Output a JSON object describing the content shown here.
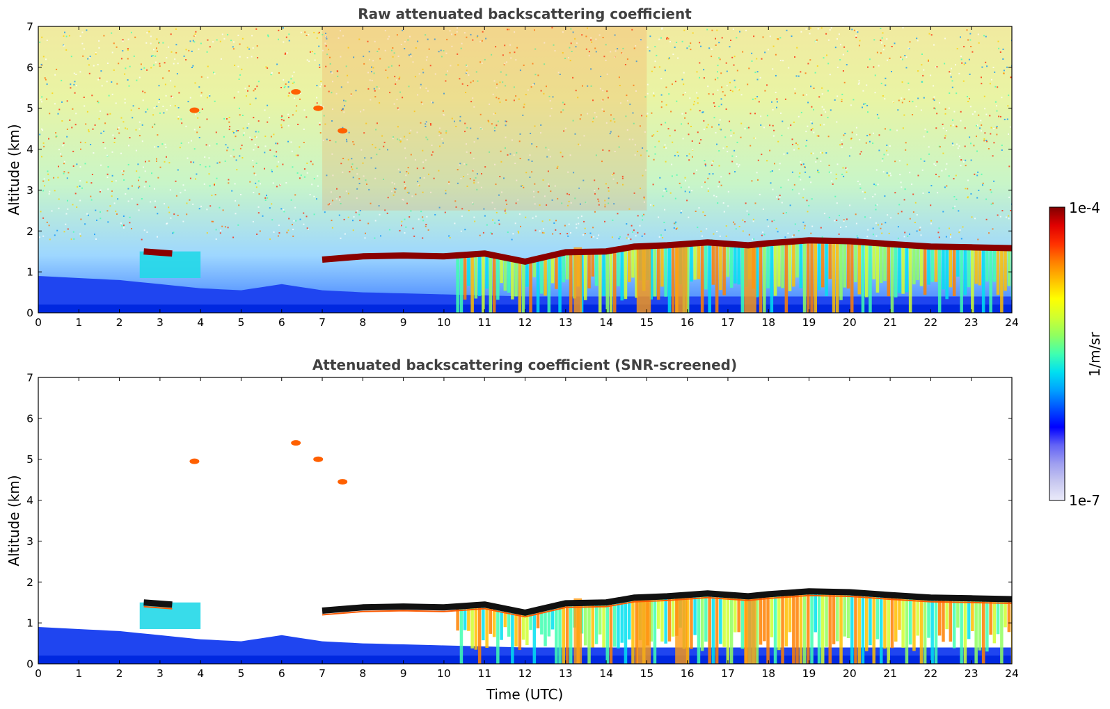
{
  "chart_data": [
    {
      "type": "heatmap",
      "title": "Raw attenuated backscattering coefficient",
      "xlabel": "",
      "ylabel": "Altitude (km)",
      "xlim": [
        0,
        24
      ],
      "ylim": [
        0,
        7
      ],
      "xticks": [
        "0",
        "1",
        "2",
        "3",
        "4",
        "5",
        "6",
        "7",
        "8",
        "9",
        "10",
        "11",
        "12",
        "13",
        "14",
        "15",
        "16",
        "17",
        "18",
        "19",
        "20",
        "21",
        "22",
        "23",
        "24"
      ],
      "yticks": [
        "0",
        "1",
        "2",
        "3",
        "4",
        "5",
        "6",
        "7"
      ],
      "cloud_base_km": [
        {
          "t": 2.6,
          "z": 1.5
        },
        {
          "t": 3.3,
          "z": 1.45
        },
        {
          "t": 7.0,
          "z": 1.3
        },
        {
          "t": 8.0,
          "z": 1.38
        },
        {
          "t": 9.0,
          "z": 1.4
        },
        {
          "t": 10.0,
          "z": 1.38
        },
        {
          "t": 11.0,
          "z": 1.45
        },
        {
          "t": 12.0,
          "z": 1.25
        },
        {
          "t": 13.0,
          "z": 1.48
        },
        {
          "t": 14.0,
          "z": 1.5
        },
        {
          "t": 14.7,
          "z": 1.62
        },
        {
          "t": 15.5,
          "z": 1.65
        },
        {
          "t": 16.5,
          "z": 1.72
        },
        {
          "t": 17.5,
          "z": 1.65
        },
        {
          "t": 18.0,
          "z": 1.7
        },
        {
          "t": 19.0,
          "z": 1.77
        },
        {
          "t": 20.0,
          "z": 1.75
        },
        {
          "t": 21.0,
          "z": 1.68
        },
        {
          "t": 22.0,
          "z": 1.62
        },
        {
          "t": 23.0,
          "z": 1.6
        },
        {
          "t": 24.0,
          "z": 1.58
        }
      ],
      "aerosol_layer": [
        {
          "t": 0,
          "top_km": 0.9
        },
        {
          "t": 2,
          "top_km": 0.8
        },
        {
          "t": 3,
          "top_km": 0.7
        },
        {
          "t": 4,
          "top_km": 0.6
        },
        {
          "t": 5,
          "top_km": 0.55
        },
        {
          "t": 6,
          "top_km": 0.7
        },
        {
          "t": 7,
          "top_km": 0.55
        },
        {
          "t": 8,
          "top_km": 0.5
        },
        {
          "t": 10,
          "top_km": 0.45
        },
        {
          "t": 12,
          "top_km": 0.4
        },
        {
          "t": 24,
          "top_km": 0.4
        }
      ],
      "cirrus_features": [
        {
          "t": 3.85,
          "z": 4.95
        },
        {
          "t": 6.35,
          "z": 5.4
        },
        {
          "t": 6.9,
          "z": 5.0
        },
        {
          "t": 7.5,
          "z": 4.45
        }
      ],
      "grid": false
    },
    {
      "type": "heatmap",
      "title": "Attenuated backscattering coefficient (SNR-screened)",
      "xlabel": "Time (UTC)",
      "ylabel": "Altitude (km)",
      "xlim": [
        0,
        24
      ],
      "ylim": [
        0,
        7
      ],
      "xticks": [
        "0",
        "1",
        "2",
        "3",
        "4",
        "5",
        "6",
        "7",
        "8",
        "9",
        "10",
        "11",
        "12",
        "13",
        "14",
        "15",
        "16",
        "17",
        "18",
        "19",
        "20",
        "21",
        "22",
        "23",
        "24"
      ],
      "yticks": [
        "0",
        "1",
        "2",
        "3",
        "4",
        "5",
        "6",
        "7"
      ],
      "grid": false
    }
  ],
  "colorbar": {
    "max_label": "1e-4",
    "min_label": "1e-7",
    "unit_label": "1/m/sr",
    "scale": "log",
    "colormap": [
      "#ebebfa",
      "#c8c8f0",
      "#9f9ff0",
      "#6464f5",
      "#0000ff",
      "#0050ff",
      "#00a0ff",
      "#00e0f0",
      "#40ffb0",
      "#90ff60",
      "#d0ff30",
      "#ffff00",
      "#ffc000",
      "#ff8000",
      "#ff3000",
      "#e00000",
      "#800000"
    ]
  }
}
